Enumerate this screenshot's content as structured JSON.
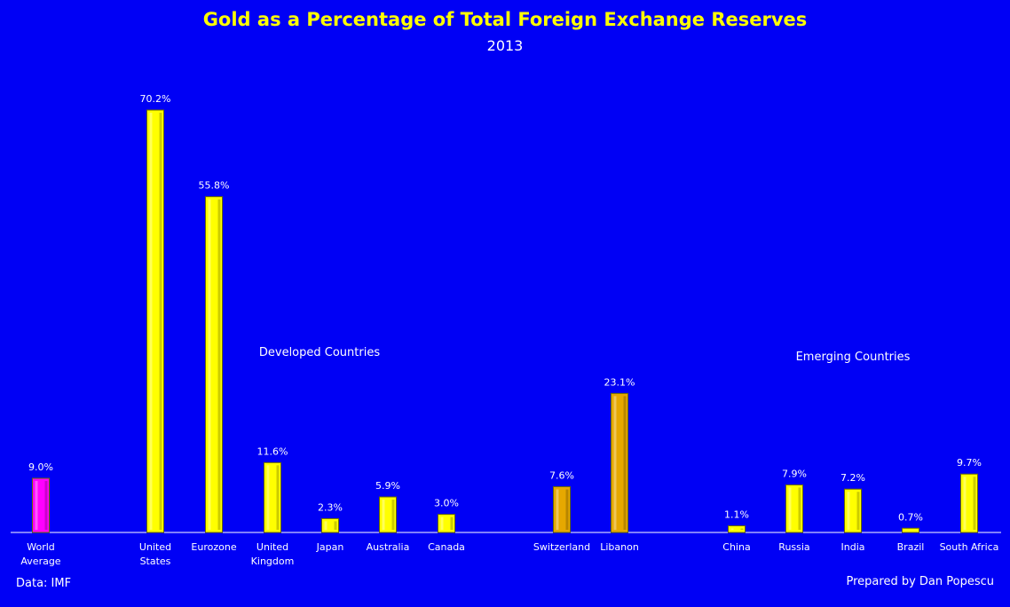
{
  "colors": {
    "background": "#0000f5",
    "bar_default": "#ffff00",
    "bar_world": "#ff00ff",
    "bar_highlight": "#e6a800",
    "axis": "#ffffff",
    "text": "#ffffff",
    "title": "#ffff00"
  },
  "source_label": "Data: IMF",
  "credit_label": "Prepared by Dan Popescu",
  "chart_data": {
    "type": "bar",
    "title": "Gold as a Percentage of Total Foreign Exchange Reserves",
    "subtitle": "2013",
    "xlabel": "",
    "ylabel": "",
    "ylim": [
      0,
      75
    ],
    "grid": false,
    "legend": "none",
    "categories": [
      "World Average",
      "United States",
      "Eurozone",
      "United Kingdom",
      "Japan",
      "Australia",
      "Canada",
      "Switzerland",
      "Libanon",
      "China",
      "Russia",
      "India",
      "Brazil",
      "South Africa"
    ],
    "category_lines": [
      [
        "World",
        "Average"
      ],
      [
        "United",
        "States"
      ],
      [
        "Eurozone"
      ],
      [
        "United",
        "Kingdom"
      ],
      [
        "Japan"
      ],
      [
        "Australia"
      ],
      [
        "Canada"
      ],
      [
        "Switzerland"
      ],
      [
        "Libanon"
      ],
      [
        "China"
      ],
      [
        "Russia"
      ],
      [
        "India"
      ],
      [
        "Brazil"
      ],
      [
        "South Africa"
      ]
    ],
    "values": [
      9.0,
      70.2,
      55.8,
      11.6,
      2.3,
      5.9,
      3.0,
      7.6,
      23.1,
      1.1,
      7.9,
      7.2,
      0.7,
      9.7
    ],
    "value_labels": [
      "9.0%",
      "70.2%",
      "55.8%",
      "11.6%",
      "2.3%",
      "5.9%",
      "3.0%",
      "7.6%",
      "23.1%",
      "1.1%",
      "7.9%",
      "7.2%",
      "0.7%",
      "9.7%"
    ],
    "bar_colors": [
      "#ff00ff",
      "#ffff00",
      "#ffff00",
      "#ffff00",
      "#ffff00",
      "#ffff00",
      "#ffff00",
      "#e6a800",
      "#e6a800",
      "#ffff00",
      "#ffff00",
      "#ffff00",
      "#ffff00",
      "#ffff00"
    ],
    "annotations": [
      "Developed Countries",
      "Emerging Countries"
    ]
  }
}
